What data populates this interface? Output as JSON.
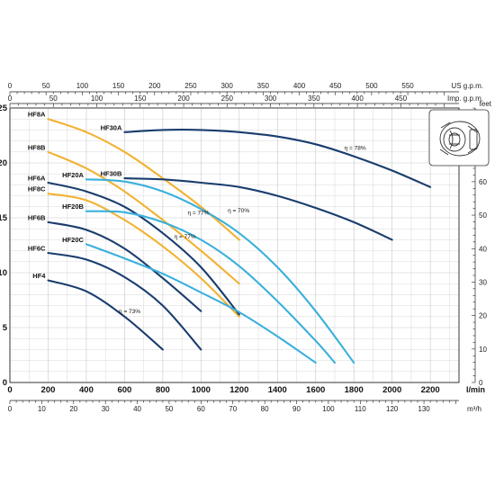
{
  "chart_data": {
    "type": "line",
    "title": "",
    "xlabel": "l/min",
    "ylabel": "",
    "xlim": [
      0,
      2350
    ],
    "ylim": [
      0,
      25
    ],
    "y_ticks": [
      0,
      5,
      10,
      15,
      20,
      25
    ],
    "x_ticks": [
      0,
      200,
      400,
      600,
      800,
      1000,
      1200,
      1400,
      1600,
      1800,
      2000,
      2200
    ],
    "grid": true,
    "top_axes": [
      {
        "unit": "US g.p.m.",
        "ticks": [
          0,
          50,
          100,
          150,
          200,
          250,
          300,
          350,
          400,
          450,
          500,
          550
        ]
      },
      {
        "unit": "Imp. g.p.m.",
        "ticks": [
          0,
          50,
          100,
          150,
          200,
          250,
          300,
          350,
          400,
          450
        ]
      }
    ],
    "bottom_axis": {
      "unit": "m³/h",
      "ticks": [
        0,
        10,
        20,
        30,
        40,
        50,
        60,
        70,
        80,
        90,
        100,
        110,
        120,
        130
      ]
    },
    "right_axis": {
      "unit": "feet",
      "ticks": [
        0,
        10,
        20,
        30,
        40,
        50,
        60,
        70,
        80
      ]
    },
    "colors": {
      "HF8": "#f2b233",
      "HF6": "#1a3d6e",
      "HF20": "#3ab0dc",
      "HF30": "#1a3d6e",
      "grid": "#c7c7c7"
    },
    "series": [
      {
        "name": "HF8A",
        "color": "#f2b233",
        "x": [
          200,
          400,
          600,
          800,
          1000,
          1200
        ],
        "y": [
          24,
          22.8,
          21,
          18.6,
          16,
          13
        ]
      },
      {
        "name": "HF8B",
        "color": "#f2b233",
        "x": [
          200,
          400,
          600,
          800,
          1000,
          1200
        ],
        "y": [
          21,
          19.5,
          17.4,
          14.8,
          12,
          9
        ]
      },
      {
        "name": "HF8C",
        "color": "#f2b233",
        "x": [
          200,
          400,
          600,
          800,
          1000,
          1200
        ],
        "y": [
          17.2,
          16.6,
          14.8,
          12.4,
          9.5,
          6
        ]
      },
      {
        "name": "HF6A",
        "color": "#1a3d6e",
        "x": [
          200,
          400,
          600,
          800,
          1000,
          1200
        ],
        "y": [
          18.2,
          17.4,
          16,
          13.6,
          10.5,
          6.2
        ]
      },
      {
        "name": "HF6B",
        "color": "#1a3d6e",
        "x": [
          200,
          400,
          600,
          800,
          1000
        ],
        "y": [
          14.6,
          13.9,
          12.2,
          9.5,
          6.5
        ]
      },
      {
        "name": "HF6C",
        "color": "#1a3d6e",
        "x": [
          200,
          400,
          600,
          800,
          1000
        ],
        "y": [
          11.8,
          11.2,
          9.6,
          7,
          3
        ]
      },
      {
        "name": "HF4",
        "color": "#1a3d6e",
        "x": [
          200,
          400,
          600,
          800
        ],
        "y": [
          9.3,
          8.3,
          6,
          3
        ]
      },
      {
        "name": "HF20A",
        "color": "#3ab0dc",
        "x": [
          400,
          600,
          800,
          1000,
          1200,
          1400,
          1600,
          1800
        ],
        "y": [
          18.5,
          18.3,
          17.4,
          15.8,
          13.6,
          10.5,
          6.5,
          1.8
        ]
      },
      {
        "name": "HF20B",
        "color": "#3ab0dc",
        "x": [
          400,
          600,
          800,
          1000,
          1200,
          1400,
          1600,
          1700
        ],
        "y": [
          15.6,
          15.5,
          14.6,
          13,
          10.6,
          7.4,
          3.8,
          1.8
        ]
      },
      {
        "name": "HF20C",
        "color": "#3ab0dc",
        "x": [
          400,
          600,
          800,
          1000,
          1200,
          1400,
          1600
        ],
        "y": [
          12.6,
          11.3,
          9.9,
          8.2,
          6.4,
          4.2,
          1.8
        ]
      },
      {
        "name": "HF30A",
        "color": "#1a3d6e",
        "x": [
          600,
          800,
          1000,
          1200,
          1400,
          1600,
          1800,
          2000,
          2200
        ],
        "y": [
          22.8,
          23,
          23,
          22.8,
          22.4,
          21.7,
          20.6,
          19.3,
          17.8
        ]
      },
      {
        "name": "HF30B",
        "color": "#1a3d6e",
        "x": [
          600,
          800,
          1000,
          1200,
          1400,
          1600,
          1800,
          2000
        ],
        "y": [
          18.6,
          18.5,
          18.2,
          17.8,
          17,
          15.9,
          14.6,
          13
        ]
      }
    ],
    "annotations": [
      {
        "text": "η = 78%",
        "x": 1750,
        "y": 21.2
      },
      {
        "text": "η = 77%",
        "x": 930,
        "y": 15.3
      },
      {
        "text": "η = 70%",
        "x": 1140,
        "y": 15.5
      },
      {
        "text": "η = 77%",
        "x": 860,
        "y": 13.1
      },
      {
        "text": "η = 73%",
        "x": 570,
        "y": 6.3
      }
    ],
    "inset": {
      "icon": "pump-impeller-icon"
    }
  }
}
